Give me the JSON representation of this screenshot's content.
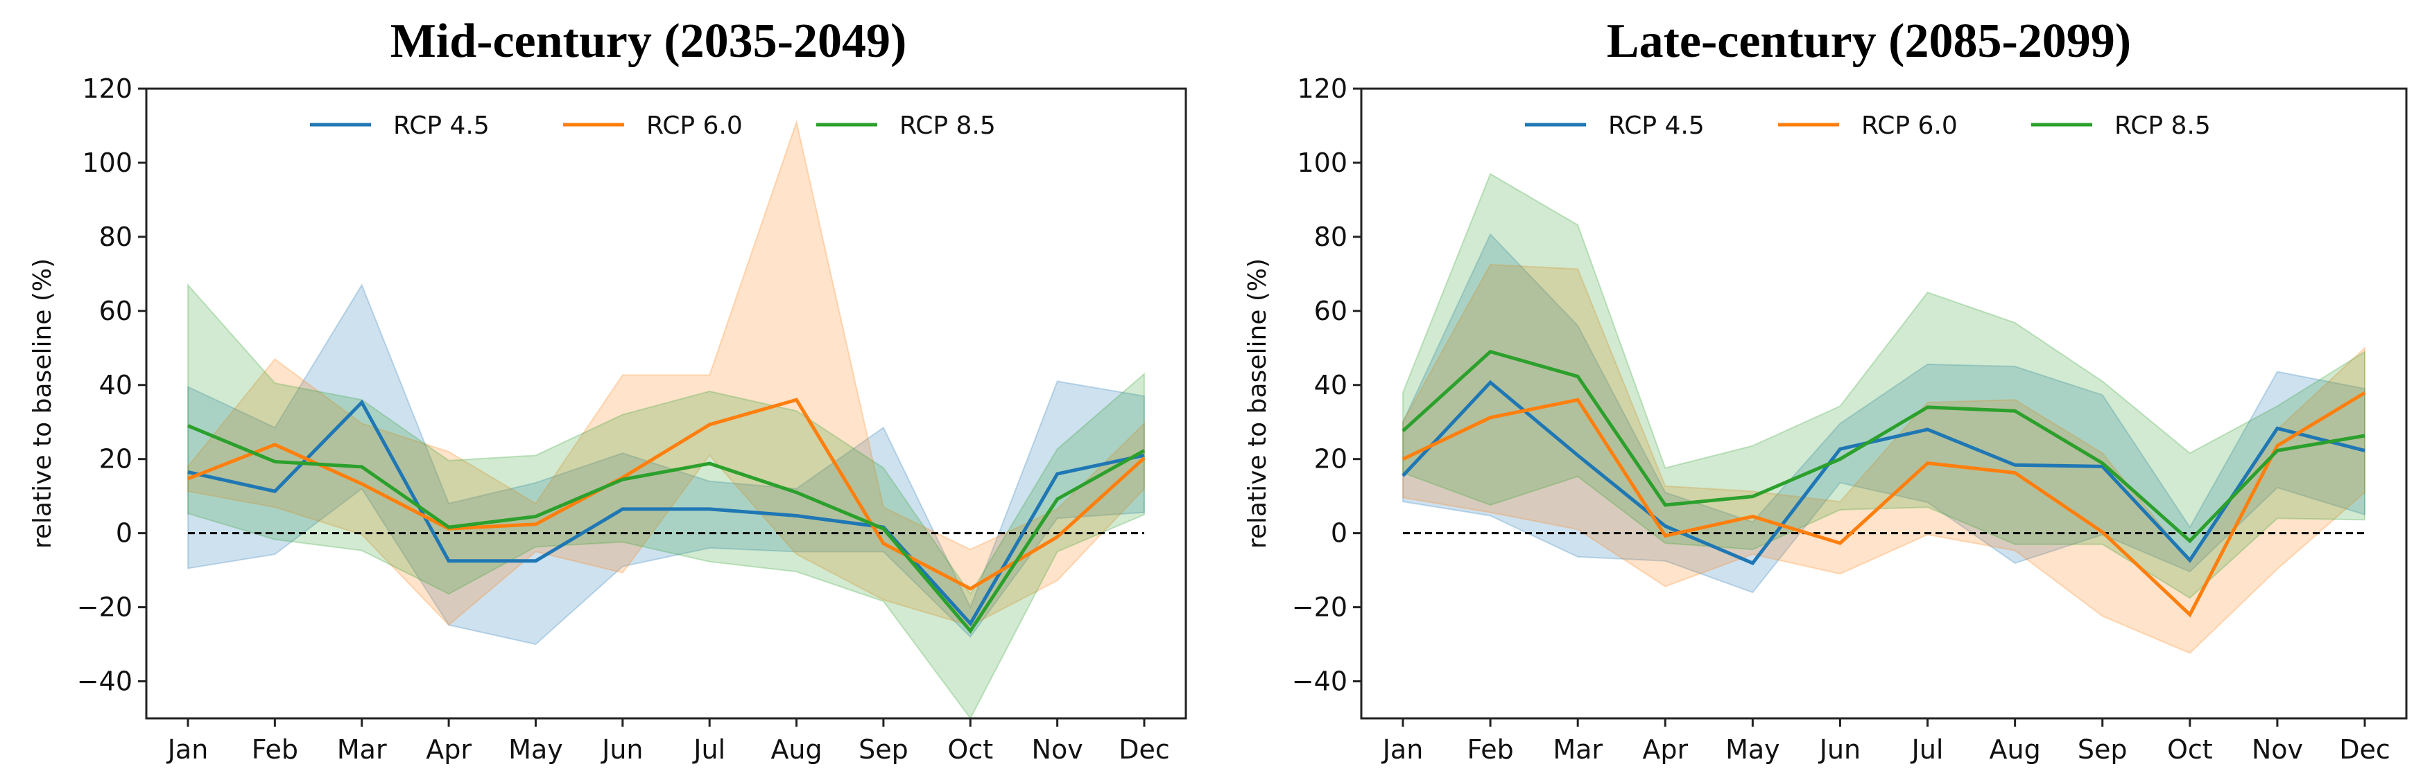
{
  "chart_data": [
    {
      "type": "line",
      "title": "Mid-century  (2035-2049)",
      "xlabel": "",
      "ylabel": "relative to baseline (%)",
      "ylim": [
        -50,
        120
      ],
      "yticks": [
        -40,
        -20,
        0,
        20,
        40,
        60,
        80,
        100,
        120
      ],
      "categories": [
        "Jan",
        "Feb",
        "Mar",
        "Apr",
        "May",
        "Jun",
        "Jul",
        "Aug",
        "Sep",
        "Oct",
        "Nov",
        "Dec"
      ],
      "baseline": 0,
      "legend_position": "top-center",
      "series": [
        {
          "name": "RCP 4.5",
          "color": "#1f77b4",
          "values": [
            16.5,
            11.3,
            35.3,
            -7.5,
            -7.5,
            6.5,
            6.5,
            4.7,
            1.6,
            -24.4,
            16,
            21
          ],
          "upper": [
            39.5,
            28.5,
            67,
            8,
            13.6,
            21.6,
            14,
            12,
            28.5,
            -20,
            41,
            37
          ],
          "lower": [
            -9.5,
            -5.7,
            12,
            -24.8,
            -30,
            -9,
            -4,
            -5,
            -5,
            -28,
            4,
            5.6
          ]
        },
        {
          "name": "RCP 6.0",
          "color": "#ff7f0e",
          "values": [
            14.7,
            23.9,
            13.3,
            1.2,
            2.4,
            15,
            29.3,
            36,
            -2.8,
            -15,
            -1,
            20.3
          ],
          "upper": [
            18,
            47,
            29.6,
            22,
            8,
            42.7,
            42.7,
            111,
            7,
            -4.4,
            6.5,
            29.6
          ],
          "lower": [
            11.3,
            7,
            -0.4,
            -24.8,
            -5,
            -10.7,
            21,
            -5.7,
            -18,
            -25,
            -12.8,
            12
          ]
        },
        {
          "name": "RCP 8.5",
          "color": "#2ca02c",
          "values": [
            29,
            19.3,
            17.9,
            1.6,
            4.5,
            14.5,
            18.8,
            11,
            1.2,
            -26.4,
            9.2,
            22.3
          ],
          "upper": [
            67,
            40.5,
            36,
            19.6,
            21,
            32,
            38.3,
            33,
            17.6,
            -16.4,
            22.7,
            43
          ],
          "lower": [
            5.3,
            -1.7,
            -4.7,
            -16.4,
            -3.7,
            -2.4,
            -7.7,
            -10.4,
            -18.4,
            -50,
            -5,
            5
          ]
        }
      ]
    },
    {
      "type": "line",
      "title": "Late-century  (2085-2099)",
      "xlabel": "",
      "ylabel": "relative to baseline (%)",
      "ylim": [
        -50,
        120
      ],
      "yticks": [
        -40,
        -20,
        0,
        20,
        40,
        60,
        80,
        100,
        120
      ],
      "categories": [
        "Jan",
        "Feb",
        "Mar",
        "Apr",
        "May",
        "Jun",
        "Jul",
        "Aug",
        "Sep",
        "Oct",
        "Nov",
        "Dec"
      ],
      "baseline": 0,
      "legend_position": "top-center",
      "series": [
        {
          "name": "RCP 4.5",
          "color": "#1f77b4",
          "values": [
            15.5,
            40.7,
            21,
            1.9,
            -8.1,
            22.7,
            28,
            18.4,
            18,
            -7.3,
            28.3,
            22.3
          ],
          "upper": [
            30,
            80.7,
            56,
            11,
            3,
            29.6,
            45.6,
            45,
            37.3,
            1.6,
            43.6,
            39
          ],
          "lower": [
            8.5,
            4.7,
            -6.4,
            -7.5,
            -16,
            13.6,
            8.3,
            -8.1,
            -0.4,
            -10.4,
            12.3,
            5
          ]
        },
        {
          "name": "RCP 6.0",
          "color": "#ff7f0e",
          "values": [
            20,
            31.2,
            36,
            -0.7,
            4.5,
            -2.7,
            18.9,
            16.3,
            0.3,
            -22,
            23.6,
            37.9
          ],
          "upper": [
            30,
            72.5,
            71.3,
            12.7,
            11.3,
            8.5,
            35.3,
            36,
            21.6,
            -7.7,
            28,
            50
          ],
          "lower": [
            9.6,
            5.6,
            1,
            -14.4,
            -5.7,
            -11,
            -0.4,
            -4.7,
            -22.4,
            -32.4,
            -9.7,
            11
          ]
        },
        {
          "name": "RCP 8.5",
          "color": "#2ca02c",
          "values": [
            27.6,
            49,
            42.3,
            7.6,
            9.9,
            20,
            34,
            33,
            18.9,
            -2.1,
            22.3,
            26.3
          ],
          "upper": [
            38,
            97,
            83.2,
            17.6,
            23.6,
            34.3,
            65,
            56.8,
            41,
            21.6,
            34.3,
            49
          ],
          "lower": [
            16.3,
            7.6,
            15.3,
            -2.7,
            -4.4,
            6.3,
            7,
            -3,
            -3,
            -17.5,
            4,
            3.6
          ]
        }
      ]
    }
  ]
}
